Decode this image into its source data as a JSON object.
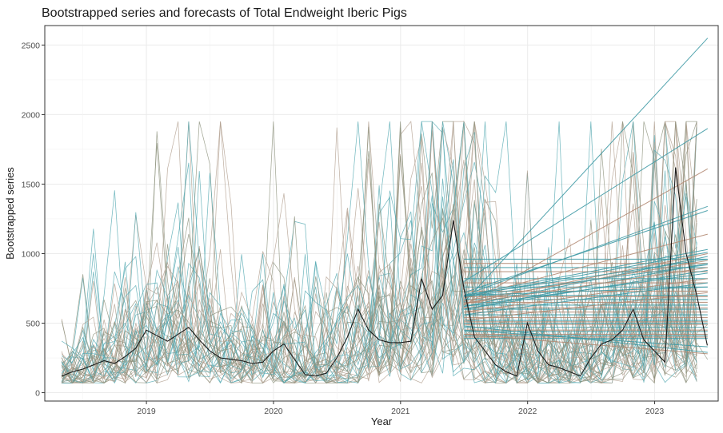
{
  "chart_data": {
    "type": "line",
    "title": "Bootstrapped series and forecasts of Total Endweight Iberic Pigs",
    "xlabel": "Year",
    "ylabel": "Bootstrapped series",
    "xlim": [
      2018.2,
      2023.5
    ],
    "ylim": [
      -60,
      2640
    ],
    "x_ticks": [
      2019,
      2020,
      2021,
      2022,
      2023
    ],
    "x_tick_labels": [
      "2019",
      "2020",
      "2021",
      "2022",
      "2023"
    ],
    "y_ticks": [
      0,
      500,
      1000,
      1500,
      2000,
      2500
    ],
    "y_tick_labels": [
      "0",
      "500",
      "1000",
      "1500",
      "2000",
      "2500"
    ],
    "grid": true,
    "legend": "none",
    "colors": {
      "original": "#1a1a1a",
      "bootstrap_teal": "#4fa6b0",
      "bootstrap_brown": "#b09c8c",
      "bootstrap_olive": "#8a8f7a",
      "forecast_teal": "#3f9aa5",
      "forecast_brown": "#b38a73"
    },
    "original_series": {
      "start": 2018.333,
      "step": 0.0833,
      "values": [
        120,
        150,
        170,
        200,
        230,
        210,
        260,
        320,
        450,
        410,
        370,
        420,
        470,
        380,
        300,
        250,
        240,
        230,
        210,
        220,
        300,
        350,
        240,
        130,
        120,
        140,
        250,
        400,
        600,
        450,
        380,
        360,
        360,
        370,
        820,
        600,
        700,
        1240,
        750,
        400,
        300,
        200,
        150,
        120,
        500,
        300,
        200,
        180,
        150,
        120,
        250,
        350,
        380,
        450,
        600,
        380,
        300,
        220,
        1620,
        1000,
        700,
        340
      ]
    },
    "bootstrap": {
      "n_series": 45,
      "start": 2018.333,
      "end": 2021.417,
      "step": 0.0833
    },
    "forecasts": {
      "start": 2021.5,
      "end": 2023.417,
      "flat_levels": [
        960,
        930,
        900,
        870,
        820,
        790,
        760,
        730,
        700,
        690,
        670,
        650,
        630,
        610,
        600,
        580,
        560,
        540,
        520,
        510,
        500,
        490,
        470,
        450,
        440,
        420,
        410,
        400,
        390
      ],
      "trend_lines": [
        {
          "start": 650,
          "end": 2550
        },
        {
          "start": 800,
          "end": 1900
        },
        {
          "start": 630,
          "end": 1610
        },
        {
          "start": 700,
          "end": 1340
        },
        {
          "start": 720,
          "end": 1310
        },
        {
          "start": 680,
          "end": 1140
        },
        {
          "start": 700,
          "end": 1030
        },
        {
          "start": 690,
          "end": 1010
        },
        {
          "start": 640,
          "end": 1000
        },
        {
          "start": 620,
          "end": 980
        },
        {
          "start": 700,
          "end": 960
        },
        {
          "start": 660,
          "end": 950
        },
        {
          "start": 600,
          "end": 930
        },
        {
          "start": 690,
          "end": 920
        },
        {
          "start": 640,
          "end": 900
        },
        {
          "start": 600,
          "end": 880
        },
        {
          "start": 620,
          "end": 860
        },
        {
          "start": 580,
          "end": 820
        },
        {
          "start": 560,
          "end": 790
        },
        {
          "start": 700,
          "end": 760
        },
        {
          "start": 520,
          "end": 720
        },
        {
          "start": 450,
          "end": 330
        },
        {
          "start": 480,
          "end": 290
        },
        {
          "start": 420,
          "end": 280
        }
      ]
    }
  }
}
